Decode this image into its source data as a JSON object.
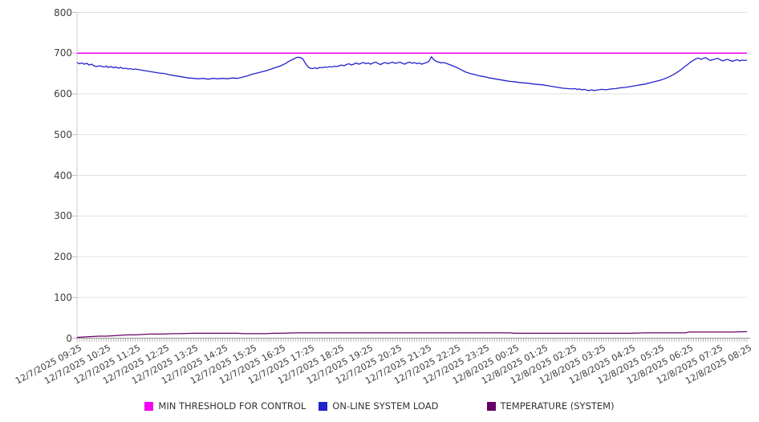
{
  "chart_data": {
    "type": "line",
    "title": "",
    "xlabel": "",
    "ylabel": "",
    "ylim": [
      0,
      800
    ],
    "y_ticks": [
      0,
      100,
      200,
      300,
      400,
      500,
      600,
      700,
      800
    ],
    "grid": "horizontal",
    "legend_position": "bottom",
    "x_tick_labels": [
      "12/7/2025 09:25",
      "12/7/2025 10:25",
      "12/7/2025 11:25",
      "12/7/2025 12:25",
      "12/7/2025 13:25",
      "12/7/2025 14:25",
      "12/7/2025 15:25",
      "12/7/2025 16:25",
      "12/7/2025 17:25",
      "12/7/2025 18:25",
      "12/7/2025 19:25",
      "12/7/2025 20:25",
      "12/7/2025 21:25",
      "12/7/2025 22:25",
      "12/7/2025 23:25",
      "12/8/2025 00:25",
      "12/8/2025 01:25",
      "12/8/2025 02:25",
      "12/8/2025 03:25",
      "12/8/2025 04:25",
      "12/8/2025 05:25",
      "12/8/2025 06:25",
      "12/8/2025 07:25",
      "12/8/2025 08:25"
    ],
    "x_minor_ticks_per_hour": 12,
    "series": [
      {
        "name": "MIN THRESHOLD FOR CONTROL",
        "color": "#F400F4",
        "type": "threshold",
        "value": 700
      },
      {
        "name": "ON-LINE SYSTEM LOAD",
        "color": "#2222CC",
        "type": "line",
        "points": [
          [
            0,
            677
          ],
          [
            0.08,
            674
          ],
          [
            0.17,
            676
          ],
          [
            0.25,
            673
          ],
          [
            0.33,
            675
          ],
          [
            0.42,
            671
          ],
          [
            0.5,
            673
          ],
          [
            0.58,
            669
          ],
          [
            0.67,
            667
          ],
          [
            0.75,
            669
          ],
          [
            0.83,
            668
          ],
          [
            0.92,
            666
          ],
          [
            1,
            668
          ],
          [
            1.08,
            665
          ],
          [
            1.17,
            667
          ],
          [
            1.25,
            664
          ],
          [
            1.33,
            666
          ],
          [
            1.42,
            663
          ],
          [
            1.5,
            665
          ],
          [
            1.58,
            662
          ],
          [
            1.67,
            663
          ],
          [
            1.75,
            661
          ],
          [
            1.83,
            662
          ],
          [
            1.92,
            660
          ],
          [
            2,
            661
          ],
          [
            2.17,
            659
          ],
          [
            2.33,
            657
          ],
          [
            2.5,
            655
          ],
          [
            2.67,
            653
          ],
          [
            2.83,
            651
          ],
          [
            3,
            650
          ],
          [
            3.17,
            647
          ],
          [
            3.33,
            645
          ],
          [
            3.5,
            643
          ],
          [
            3.67,
            641
          ],
          [
            3.83,
            639
          ],
          [
            4,
            638
          ],
          [
            4.17,
            637
          ],
          [
            4.33,
            638
          ],
          [
            4.5,
            636
          ],
          [
            4.67,
            638
          ],
          [
            4.83,
            637
          ],
          [
            5,
            638
          ],
          [
            5.17,
            637
          ],
          [
            5.33,
            639
          ],
          [
            5.5,
            638
          ],
          [
            5.67,
            641
          ],
          [
            5.83,
            644
          ],
          [
            6,
            648
          ],
          [
            6.17,
            651
          ],
          [
            6.33,
            654
          ],
          [
            6.5,
            657
          ],
          [
            6.67,
            661
          ],
          [
            6.83,
            665
          ],
          [
            7,
            669
          ],
          [
            7.08,
            672
          ],
          [
            7.17,
            675
          ],
          [
            7.25,
            679
          ],
          [
            7.33,
            682
          ],
          [
            7.42,
            685
          ],
          [
            7.5,
            688
          ],
          [
            7.58,
            690
          ],
          [
            7.67,
            689
          ],
          [
            7.75,
            686
          ],
          [
            7.83,
            676
          ],
          [
            7.92,
            667
          ],
          [
            8,
            663
          ],
          [
            8.08,
            662
          ],
          [
            8.17,
            664
          ],
          [
            8.25,
            662
          ],
          [
            8.33,
            665
          ],
          [
            8.42,
            664
          ],
          [
            8.5,
            666
          ],
          [
            8.58,
            665
          ],
          [
            8.67,
            667
          ],
          [
            8.75,
            666
          ],
          [
            8.83,
            668
          ],
          [
            8.92,
            667
          ],
          [
            9,
            669
          ],
          [
            9.08,
            671
          ],
          [
            9.17,
            669
          ],
          [
            9.25,
            672
          ],
          [
            9.33,
            674
          ],
          [
            9.42,
            671
          ],
          [
            9.5,
            673
          ],
          [
            9.58,
            676
          ],
          [
            9.67,
            673
          ],
          [
            9.75,
            675
          ],
          [
            9.83,
            677
          ],
          [
            9.92,
            674
          ],
          [
            10,
            676
          ],
          [
            10.08,
            673
          ],
          [
            10.17,
            676
          ],
          [
            10.25,
            678
          ],
          [
            10.33,
            675
          ],
          [
            10.42,
            672
          ],
          [
            10.5,
            675
          ],
          [
            10.58,
            677
          ],
          [
            10.67,
            674
          ],
          [
            10.75,
            676
          ],
          [
            10.83,
            678
          ],
          [
            10.92,
            675
          ],
          [
            11,
            676
          ],
          [
            11.08,
            678
          ],
          [
            11.17,
            675
          ],
          [
            11.25,
            673
          ],
          [
            11.33,
            676
          ],
          [
            11.42,
            678
          ],
          [
            11.5,
            675
          ],
          [
            11.58,
            677
          ],
          [
            11.67,
            674
          ],
          [
            11.75,
            676
          ],
          [
            11.83,
            673
          ],
          [
            11.92,
            675
          ],
          [
            12,
            677
          ],
          [
            12.08,
            680
          ],
          [
            12.17,
            691
          ],
          [
            12.25,
            684
          ],
          [
            12.33,
            680
          ],
          [
            12.42,
            678
          ],
          [
            12.5,
            676
          ],
          [
            12.58,
            677
          ],
          [
            12.67,
            675
          ],
          [
            12.75,
            673
          ],
          [
            12.83,
            671
          ],
          [
            12.92,
            668
          ],
          [
            13,
            666
          ],
          [
            13.17,
            660
          ],
          [
            13.33,
            654
          ],
          [
            13.5,
            650
          ],
          [
            13.67,
            647
          ],
          [
            13.83,
            644
          ],
          [
            14,
            642
          ],
          [
            14.17,
            639
          ],
          [
            14.33,
            637
          ],
          [
            14.5,
            635
          ],
          [
            14.67,
            633
          ],
          [
            14.83,
            631
          ],
          [
            15,
            630
          ],
          [
            15.17,
            628
          ],
          [
            15.33,
            627
          ],
          [
            15.5,
            626
          ],
          [
            15.67,
            624
          ],
          [
            15.83,
            623
          ],
          [
            16,
            622
          ],
          [
            16.17,
            620
          ],
          [
            16.33,
            618
          ],
          [
            16.5,
            616
          ],
          [
            16.67,
            614
          ],
          [
            16.83,
            613
          ],
          [
            17,
            612
          ],
          [
            17.08,
            613
          ],
          [
            17.17,
            611
          ],
          [
            17.25,
            612
          ],
          [
            17.33,
            610
          ],
          [
            17.42,
            611
          ],
          [
            17.5,
            609
          ],
          [
            17.58,
            608
          ],
          [
            17.67,
            610
          ],
          [
            17.75,
            608
          ],
          [
            17.83,
            609
          ],
          [
            17.92,
            610
          ],
          [
            18,
            611
          ],
          [
            18.17,
            610
          ],
          [
            18.33,
            612
          ],
          [
            18.5,
            613
          ],
          [
            18.67,
            615
          ],
          [
            18.83,
            616
          ],
          [
            19,
            618
          ],
          [
            19.17,
            620
          ],
          [
            19.33,
            622
          ],
          [
            19.5,
            624
          ],
          [
            19.67,
            627
          ],
          [
            19.83,
            630
          ],
          [
            20,
            633
          ],
          [
            20.17,
            637
          ],
          [
            20.33,
            642
          ],
          [
            20.5,
            648
          ],
          [
            20.67,
            656
          ],
          [
            20.83,
            665
          ],
          [
            21,
            674
          ],
          [
            21.08,
            679
          ],
          [
            21.17,
            683
          ],
          [
            21.25,
            686
          ],
          [
            21.33,
            688
          ],
          [
            21.42,
            685
          ],
          [
            21.5,
            687
          ],
          [
            21.58,
            689
          ],
          [
            21.67,
            685
          ],
          [
            21.75,
            682
          ],
          [
            21.83,
            684
          ],
          [
            21.92,
            686
          ],
          [
            22,
            687
          ],
          [
            22.08,
            684
          ],
          [
            22.17,
            681
          ],
          [
            22.25,
            683
          ],
          [
            22.33,
            685
          ],
          [
            22.42,
            682
          ],
          [
            22.5,
            680
          ],
          [
            22.58,
            682
          ],
          [
            22.67,
            684
          ],
          [
            22.75,
            681
          ],
          [
            22.83,
            683
          ],
          [
            22.92,
            682
          ],
          [
            23,
            683
          ]
        ]
      },
      {
        "name": "TEMPERATURE (SYSTEM)",
        "color": "#660066",
        "type": "line",
        "points": [
          [
            0,
            2
          ],
          [
            0.25,
            3
          ],
          [
            0.5,
            4
          ],
          [
            0.75,
            5
          ],
          [
            1,
            5
          ],
          [
            1.25,
            6
          ],
          [
            1.5,
            7
          ],
          [
            1.75,
            8
          ],
          [
            2,
            8
          ],
          [
            2.25,
            9
          ],
          [
            2.5,
            10
          ],
          [
            3,
            10
          ],
          [
            3.25,
            11
          ],
          [
            3.5,
            11
          ],
          [
            4,
            12
          ],
          [
            4.5,
            12
          ],
          [
            5,
            12
          ],
          [
            5.5,
            12
          ],
          [
            5.75,
            11
          ],
          [
            6,
            11
          ],
          [
            6.5,
            11
          ],
          [
            6.75,
            12
          ],
          [
            7,
            12
          ],
          [
            7.5,
            13
          ],
          [
            8,
            13
          ],
          [
            9,
            13
          ],
          [
            10,
            13
          ],
          [
            11,
            13
          ],
          [
            12,
            13
          ],
          [
            13,
            13
          ],
          [
            14,
            13
          ],
          [
            14.9,
            13
          ],
          [
            15,
            12
          ],
          [
            16,
            12
          ],
          [
            17,
            12
          ],
          [
            18,
            12
          ],
          [
            19,
            12
          ],
          [
            19.5,
            13
          ],
          [
            20,
            13
          ],
          [
            20.9,
            13
          ],
          [
            21,
            15
          ],
          [
            22,
            15
          ],
          [
            22.5,
            15
          ],
          [
            23,
            16
          ]
        ]
      }
    ],
    "axis_colors": {
      "grid": "#E0E0E0",
      "x_axis": "#999999",
      "y_axis": "#CCCCCC",
      "minor_tick": "#AAAAAA"
    }
  }
}
